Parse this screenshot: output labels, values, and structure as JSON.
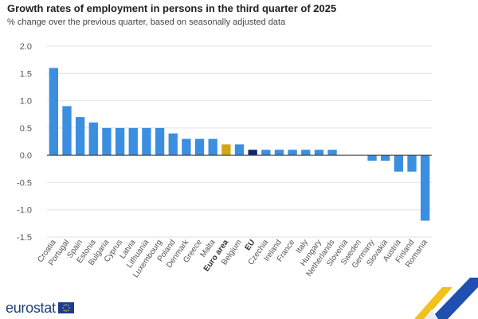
{
  "header": {
    "title": "Growth rates of employment in persons in the third quarter of 2025",
    "subtitle": "% change over the previous quarter, based on seasonally adjusted data"
  },
  "brand": {
    "logo": "eurostat"
  },
  "colors": {
    "bar": "#3b8ee0",
    "euro_area": "#cfa816",
    "eu": "#0b2a6e",
    "grid": "#e2e2e2",
    "axis": "#333333",
    "tick_text": "#555555"
  },
  "chart_data": {
    "type": "bar",
    "title": "Growth rates of employment in persons in the third quarter of 2025",
    "subtitle": "% change over the previous quarter, based on seasonally adjusted data",
    "xlabel": "",
    "ylabel": "",
    "ylim": [
      -1.5,
      2.0
    ],
    "yticks": [
      "2.0",
      "1.5",
      "1.0",
      "0.5",
      "0.0",
      "-0.5",
      "-1.0",
      "-1.5"
    ],
    "grid": true,
    "categories": [
      "Croatia",
      "Portugal",
      "Spain",
      "Estonia",
      "Bulgaria",
      "Cyprus",
      "Latvia",
      "Lithuania",
      "Luxembourg",
      "Poland",
      "Denmark",
      "Greece",
      "Malta",
      "Euro area",
      "Belgium",
      "EU",
      "Czechia",
      "Ireland",
      "France",
      "Italy",
      "Hungary",
      "Netherlands",
      "Slovenia",
      "Sweden",
      "Germany",
      "Slovakia",
      "Austria",
      "Finland",
      "Romania"
    ],
    "values": [
      1.6,
      0.9,
      0.7,
      0.6,
      0.5,
      0.5,
      0.5,
      0.5,
      0.5,
      0.4,
      0.3,
      0.3,
      0.3,
      0.2,
      0.2,
      0.1,
      0.1,
      0.1,
      0.1,
      0.1,
      0.1,
      0.1,
      0.0,
      0.0,
      -0.1,
      -0.1,
      -0.3,
      -0.3,
      -1.2
    ],
    "highlight": {
      "Euro area": "euro_area",
      "EU": "eu"
    },
    "bold_categories": [
      "Euro area",
      "EU"
    ]
  }
}
